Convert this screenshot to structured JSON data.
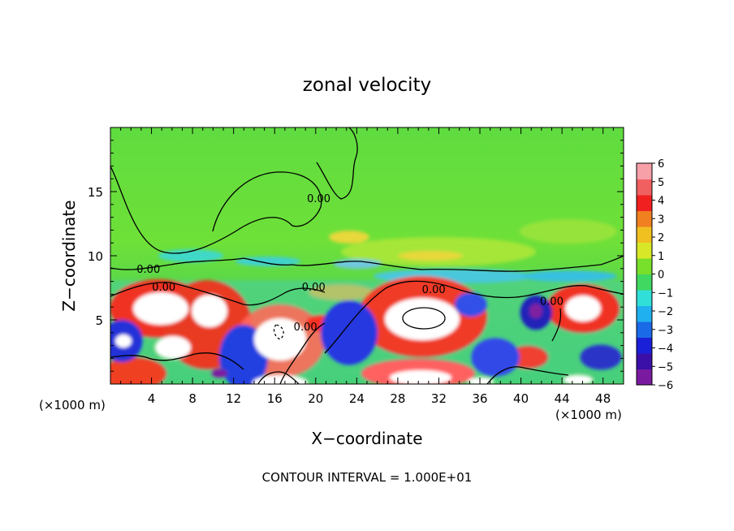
{
  "chart_data": {
    "type": "heatmap",
    "title": "zonal velocity",
    "xlabel": "X−coordinate",
    "ylabel": "Z−coordinate",
    "x_unit": "(×1000 m)",
    "y_unit": "(×1000 m)",
    "xlim": [
      0,
      50
    ],
    "ylim": [
      0,
      20
    ],
    "x_ticks": [
      4,
      8,
      12,
      16,
      20,
      24,
      28,
      32,
      36,
      40,
      44,
      48
    ],
    "y_ticks": [
      5,
      10,
      15
    ],
    "colorbar": {
      "ticks": [
        6,
        5,
        4,
        3,
        2,
        1,
        0,
        -1,
        -2,
        -3,
        -4,
        -5,
        -6
      ],
      "tick_labels": [
        "6",
        "5",
        "4",
        "3",
        "2",
        "1",
        "0",
        "−1",
        "−2",
        "−3",
        "−4",
        "−5",
        "−6"
      ],
      "range": [
        -6,
        6
      ]
    },
    "contour_labels": [
      {
        "text": "0.00",
        "x": 3.7,
        "z": 9.0
      },
      {
        "text": "0.00",
        "x": 5.2,
        "z": 7.6
      },
      {
        "text": "0.00",
        "x": 19.8,
        "z": 7.6
      },
      {
        "text": "0.00",
        "x": 19.0,
        "z": 4.5
      },
      {
        "text": "0.00",
        "x": 20.3,
        "z": 14.5
      },
      {
        "text": "0.00",
        "x": 31.5,
        "z": 7.4
      },
      {
        "text": "0.00",
        "x": 43.0,
        "z": 6.5
      }
    ],
    "white_cells_note": "saturated |u| > 6",
    "footer": "CONTOUR INTERVAL = 1.000E+01"
  }
}
